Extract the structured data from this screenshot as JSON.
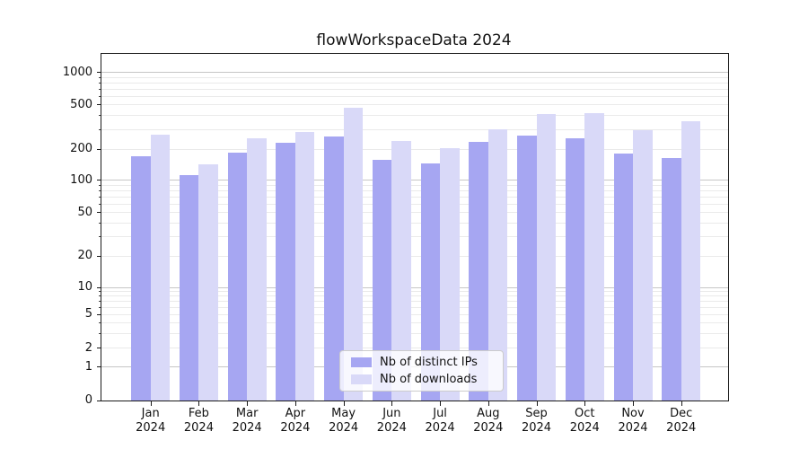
{
  "chart_data": {
    "type": "bar",
    "title": "flowWorkspaceData 2024",
    "categories": [
      "Jan",
      "Feb",
      "Mar",
      "Apr",
      "May",
      "Jun",
      "Jul",
      "Aug",
      "Sep",
      "Oct",
      "Nov",
      "Dec"
    ],
    "category_year": "2024",
    "series": [
      {
        "name": "Nb of distinct IPs",
        "color": "#a6a6f2",
        "values": [
          172,
          112,
          185,
          228,
          258,
          157,
          146,
          234,
          266,
          250,
          180,
          165
        ]
      },
      {
        "name": "Nb of downloads",
        "color": "#d9d9f8",
        "values": [
          270,
          144,
          252,
          287,
          470,
          239,
          205,
          300,
          410,
          424,
          297,
          358
        ]
      }
    ],
    "xlabel": "",
    "ylabel": "",
    "yscale": "symlog",
    "ylim": [
      0,
      1480
    ],
    "yticks": [
      0,
      1,
      2,
      5,
      10,
      20,
      50,
      100,
      200,
      500,
      1000
    ],
    "ytick_fractions": [
      [
        0,
        0.0
      ],
      [
        1,
        0.097
      ],
      [
        2,
        0.1505
      ],
      [
        5,
        0.2475
      ],
      [
        10,
        0.3262
      ],
      [
        20,
        0.417
      ],
      [
        50,
        0.5415
      ],
      [
        100,
        0.6349
      ],
      [
        200,
        0.725
      ],
      [
        500,
        0.8529
      ],
      [
        1000,
        0.9463
      ]
    ],
    "grid": true,
    "legend_position": "lower center",
    "colors": {
      "major_grid": "#c6c6c6",
      "minor_grid": "#eaeaea",
      "spine": "#1a1a1a",
      "text": "#111111",
      "background": "#ffffff"
    }
  }
}
